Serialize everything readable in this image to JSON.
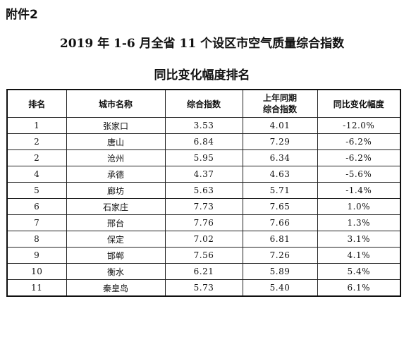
{
  "attachment_label": "附件2",
  "title_line1": "2019 年 1-6 月全省 11 个设区市空气质量综合指数",
  "title_line2": "同比变化幅度排名",
  "table": {
    "headers": [
      "排名",
      "城市名称",
      "综合指数",
      "上年同期\n综合指数",
      "同比变化幅度"
    ],
    "rows": [
      [
        "1",
        "张家口",
        "3.53",
        "4.01",
        "-12.0%"
      ],
      [
        "2",
        "唐山",
        "6.84",
        "7.29",
        "-6.2%"
      ],
      [
        "2",
        "沧州",
        "5.95",
        "6.34",
        "-6.2%"
      ],
      [
        "4",
        "承德",
        "4.37",
        "4.63",
        "-5.6%"
      ],
      [
        "5",
        "廊坊",
        "5.63",
        "5.71",
        "-1.4%"
      ],
      [
        "6",
        "石家庄",
        "7.73",
        "7.65",
        "1.0%"
      ],
      [
        "7",
        "邢台",
        "7.76",
        "7.66",
        "1.3%"
      ],
      [
        "8",
        "保定",
        "7.02",
        "6.81",
        "3.1%"
      ],
      [
        "9",
        "邯郸",
        "7.56",
        "7.26",
        "4.1%"
      ],
      [
        "10",
        "衡水",
        "6.21",
        "5.89",
        "5.4%"
      ],
      [
        "11",
        "秦皇岛",
        "5.73",
        "5.40",
        "6.1%"
      ]
    ]
  }
}
